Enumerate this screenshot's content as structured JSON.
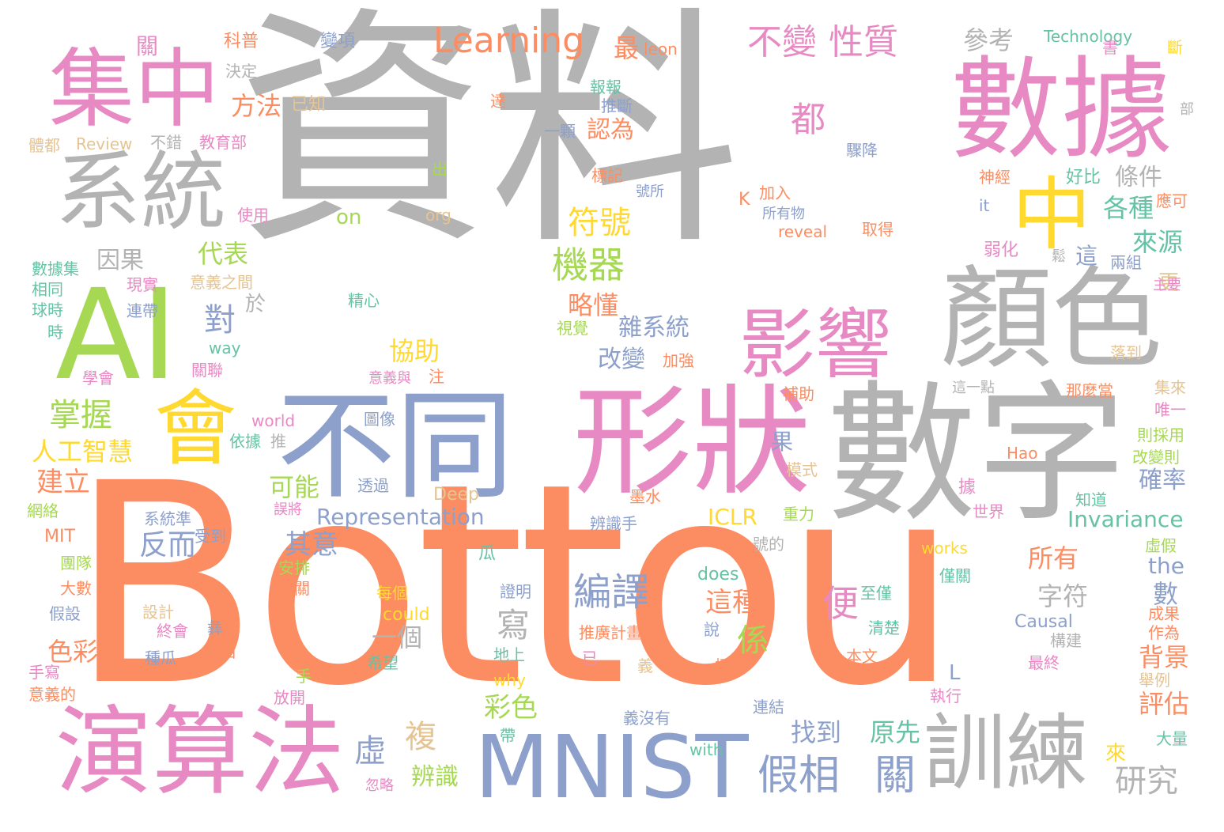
{
  "palette": {
    "gray": "#b3b3b3",
    "orange": "#fc8d62",
    "pink": "#e78ac3",
    "yellow": "#ffd92f",
    "green": "#a6d854",
    "blue": "#8da0cb",
    "teal": "#66c2a5",
    "tan": "#e5c494"
  },
  "words": [
    {
      "text": "資料",
      "color": "gray"
    },
    {
      "text": "Bottou",
      "color": "orange"
    },
    {
      "text": "數據",
      "color": "pink"
    },
    {
      "text": "數字",
      "color": "gray"
    },
    {
      "text": "AI",
      "color": "green"
    },
    {
      "text": "集中",
      "color": "pink"
    },
    {
      "text": "系統",
      "color": "gray"
    },
    {
      "text": "顏色",
      "color": "gray"
    },
    {
      "text": "形狀",
      "color": "pink"
    },
    {
      "text": "不同",
      "color": "blue"
    },
    {
      "text": "會",
      "color": "yellow"
    },
    {
      "text": "中",
      "color": "yellow"
    },
    {
      "text": "演算法",
      "color": "pink"
    },
    {
      "text": "MNIST",
      "color": "blue"
    },
    {
      "text": "訓練",
      "color": "gray"
    },
    {
      "text": "影響",
      "color": "pink"
    },
    {
      "text": "Learning",
      "color": "orange"
    },
    {
      "text": "不變",
      "color": "pink"
    },
    {
      "text": "性質",
      "color": "pink"
    },
    {
      "text": "假相",
      "color": "blue"
    },
    {
      "text": "關",
      "color": "blue"
    },
    {
      "text": "研究",
      "color": "gray"
    },
    {
      "text": "編譯",
      "color": "blue"
    },
    {
      "text": "機器",
      "color": "green"
    },
    {
      "text": "符號",
      "color": "yellow"
    },
    {
      "text": "掌握",
      "color": "green"
    },
    {
      "text": "人工智慧",
      "color": "yellow"
    },
    {
      "text": "建立",
      "color": "orange"
    },
    {
      "text": "反而",
      "color": "blue"
    },
    {
      "text": "其意",
      "color": "blue"
    },
    {
      "text": "Representation",
      "color": "blue"
    },
    {
      "text": "Invariance",
      "color": "teal"
    },
    {
      "text": "ICLR",
      "color": "yellow"
    },
    {
      "text": "彩色",
      "color": "green"
    },
    {
      "text": "找到",
      "color": "blue"
    },
    {
      "text": "原先",
      "color": "teal"
    },
    {
      "text": "辨識",
      "color": "green"
    },
    {
      "text": "虛",
      "color": "blue"
    },
    {
      "text": "複",
      "color": "tan"
    },
    {
      "text": "都",
      "color": "pink"
    },
    {
      "text": "對",
      "color": "blue"
    },
    {
      "text": "便",
      "color": "pink"
    },
    {
      "text": "寫",
      "color": "gray"
    },
    {
      "text": "係",
      "color": "green"
    },
    {
      "text": "這種",
      "color": "orange"
    },
    {
      "text": "所有",
      "color": "orange"
    },
    {
      "text": "一個",
      "color": "gray"
    },
    {
      "text": "字符",
      "color": "gray"
    },
    {
      "text": "背景",
      "color": "orange"
    },
    {
      "text": "評估",
      "color": "orange"
    },
    {
      "text": "確率",
      "color": "blue"
    },
    {
      "text": "來源",
      "color": "teal"
    },
    {
      "text": "各種",
      "color": "teal"
    },
    {
      "text": "條件",
      "color": "gray"
    },
    {
      "text": "參考",
      "color": "gray"
    },
    {
      "text": "方法",
      "color": "orange"
    },
    {
      "text": "代表",
      "color": "green"
    },
    {
      "text": "因果",
      "color": "gray"
    },
    {
      "text": "略懂",
      "color": "orange"
    },
    {
      "text": "雜系統",
      "color": "blue"
    },
    {
      "text": "協助",
      "color": "yellow"
    },
    {
      "text": "改變",
      "color": "blue"
    },
    {
      "text": "可能",
      "color": "green"
    },
    {
      "text": "色彩",
      "color": "orange"
    },
    {
      "text": "最",
      "color": "orange"
    },
    {
      "text": "認為",
      "color": "orange"
    },
    {
      "text": "the",
      "color": "blue"
    },
    {
      "text": "數",
      "color": "blue"
    },
    {
      "text": "Technology",
      "color": "teal"
    },
    {
      "text": "leon",
      "color": "orange"
    },
    {
      "text": "on",
      "color": "green"
    },
    {
      "text": "org",
      "color": "tan"
    },
    {
      "text": "Review",
      "color": "tan"
    },
    {
      "text": "Causal",
      "color": "blue"
    },
    {
      "text": "Deep",
      "color": "tan"
    },
    {
      "text": "could",
      "color": "yellow"
    },
    {
      "text": "does",
      "color": "teal"
    },
    {
      "text": "works",
      "color": "yellow"
    },
    {
      "text": "why",
      "color": "yellow"
    },
    {
      "text": "with",
      "color": "teal"
    },
    {
      "text": "world",
      "color": "pink"
    },
    {
      "text": "reveal",
      "color": "orange"
    },
    {
      "text": "Hao",
      "color": "orange"
    },
    {
      "text": "MIT",
      "color": "orange"
    },
    {
      "text": "way",
      "color": "teal"
    },
    {
      "text": "it",
      "color": "blue"
    },
    {
      "text": "K",
      "color": "orange"
    },
    {
      "text": "L",
      "color": "blue"
    },
    {
      "text": "於",
      "color": "gray"
    },
    {
      "text": "果",
      "color": "blue"
    },
    {
      "text": "更",
      "color": "tan"
    },
    {
      "text": "這",
      "color": "blue"
    },
    {
      "text": "來",
      "color": "yellow"
    },
    {
      "text": "科普",
      "color": "orange"
    },
    {
      "text": "變項",
      "color": "blue"
    },
    {
      "text": "決定",
      "color": "gray"
    },
    {
      "text": "關",
      "color": "pink"
    },
    {
      "text": "已知",
      "color": "tan"
    },
    {
      "text": "不錯",
      "color": "gray"
    },
    {
      "text": "教育部",
      "color": "pink"
    },
    {
      "text": "體都",
      "color": "tan"
    },
    {
      "text": "使用",
      "color": "pink"
    },
    {
      "text": "數據集",
      "color": "teal"
    },
    {
      "text": "相同",
      "color": "teal"
    },
    {
      "text": "球時",
      "color": "teal"
    },
    {
      "text": "時",
      "color": "teal"
    },
    {
      "text": "現實",
      "color": "pink"
    },
    {
      "text": "意義之間",
      "color": "tan"
    },
    {
      "text": "連帶",
      "color": "blue"
    },
    {
      "text": "學會",
      "color": "pink"
    },
    {
      "text": "關聯",
      "color": "pink"
    },
    {
      "text": "依據",
      "color": "teal"
    },
    {
      "text": "推",
      "color": "gray"
    },
    {
      "text": "網絡",
      "color": "green"
    },
    {
      "text": "受到",
      "color": "blue"
    },
    {
      "text": "系統準",
      "color": "blue"
    },
    {
      "text": "團隊",
      "color": "green"
    },
    {
      "text": "大數",
      "color": "orange"
    },
    {
      "text": "假設",
      "color": "blue"
    },
    {
      "text": "設計",
      "color": "tan"
    },
    {
      "text": "終會",
      "color": "pink"
    },
    {
      "text": "種瓜",
      "color": "blue"
    },
    {
      "text": "假相",
      "color": "orange"
    },
    {
      "text": "正",
      "color": "orange"
    },
    {
      "text": "手寫",
      "color": "pink"
    },
    {
      "text": "意義的",
      "color": "orange"
    },
    {
      "text": "手",
      "color": "green"
    },
    {
      "text": "放開",
      "color": "pink"
    },
    {
      "text": "安排",
      "color": "green"
    },
    {
      "text": "無關",
      "color": "orange"
    },
    {
      "text": "每個",
      "color": "yellow"
    },
    {
      "text": "證明",
      "color": "blue"
    },
    {
      "text": "希望",
      "color": "teal"
    },
    {
      "text": "地上",
      "color": "teal"
    },
    {
      "text": "推廣計畫",
      "color": "orange"
    },
    {
      "text": "已",
      "color": "pink"
    },
    {
      "text": "義",
      "color": "tan"
    },
    {
      "text": "探勘",
      "color": "orange"
    },
    {
      "text": "連結",
      "color": "blue"
    },
    {
      "text": "義沒有",
      "color": "blue"
    },
    {
      "text": "本文",
      "color": "orange"
    },
    {
      "text": "清楚",
      "color": "teal"
    },
    {
      "text": "至僅",
      "color": "teal"
    },
    {
      "text": "最終",
      "color": "pink"
    },
    {
      "text": "構建",
      "color": "gray"
    },
    {
      "text": "執行",
      "color": "pink"
    },
    {
      "text": "大量",
      "color": "teal"
    },
    {
      "text": "作為",
      "color": "orange"
    },
    {
      "text": "成果",
      "color": "orange"
    },
    {
      "text": "舉例",
      "color": "tan"
    },
    {
      "text": "虛假",
      "color": "green"
    },
    {
      "text": "知道",
      "color": "teal"
    },
    {
      "text": "世界",
      "color": "pink"
    },
    {
      "text": "重力",
      "color": "green"
    },
    {
      "text": "辨識手",
      "color": "blue"
    },
    {
      "text": "墨水",
      "color": "orange"
    },
    {
      "text": "透過",
      "color": "blue"
    },
    {
      "text": "圖像",
      "color": "blue"
    },
    {
      "text": "誤將",
      "color": "pink"
    },
    {
      "text": "模式",
      "color": "tan"
    },
    {
      "text": "改變則",
      "color": "green"
    },
    {
      "text": "則採用",
      "color": "green"
    },
    {
      "text": "唯一",
      "color": "pink"
    },
    {
      "text": "集來",
      "color": "tan"
    },
    {
      "text": "那麼當",
      "color": "orange"
    },
    {
      "text": "這一點",
      "color": "gray"
    },
    {
      "text": "補助",
      "color": "orange"
    },
    {
      "text": "落到",
      "color": "tan"
    },
    {
      "text": "主要",
      "color": "pink"
    },
    {
      "text": "兩組",
      "color": "blue"
    },
    {
      "text": "應可",
      "color": "orange"
    },
    {
      "text": "好比",
      "color": "teal"
    },
    {
      "text": "神經",
      "color": "orange"
    },
    {
      "text": "取得",
      "color": "orange"
    },
    {
      "text": "所有物",
      "color": "blue"
    },
    {
      "text": "加入",
      "color": "orange"
    },
    {
      "text": "號所",
      "color": "blue"
    },
    {
      "text": "標記",
      "color": "orange"
    },
    {
      "text": "驟降",
      "color": "blue"
    },
    {
      "text": "報報",
      "color": "teal"
    },
    {
      "text": "推斷",
      "color": "blue"
    },
    {
      "text": "一顆",
      "color": "blue"
    },
    {
      "text": "達",
      "color": "orange"
    },
    {
      "text": "出",
      "color": "green"
    },
    {
      "text": "精心",
      "color": "teal"
    },
    {
      "text": "加強",
      "color": "orange"
    },
    {
      "text": "視覺",
      "color": "green"
    },
    {
      "text": "意義與",
      "color": "pink"
    },
    {
      "text": "注",
      "color": "orange"
    },
    {
      "text": "瓜",
      "color": "teal"
    },
    {
      "text": "號的",
      "color": "gray"
    },
    {
      "text": "說",
      "color": "blue"
    },
    {
      "text": "彝",
      "color": "blue"
    },
    {
      "text": "僅關",
      "color": "teal"
    },
    {
      "text": "據",
      "color": "pink"
    },
    {
      "text": "弱化",
      "color": "pink"
    },
    {
      "text": "鬆",
      "color": "gray"
    },
    {
      "text": "部",
      "color": "gray"
    },
    {
      "text": "斷",
      "color": "yellow"
    },
    {
      "text": "書",
      "color": "pink"
    },
    {
      "text": "帶",
      "color": "teal"
    },
    {
      "text": "忽略",
      "color": "pink"
    }
  ]
}
